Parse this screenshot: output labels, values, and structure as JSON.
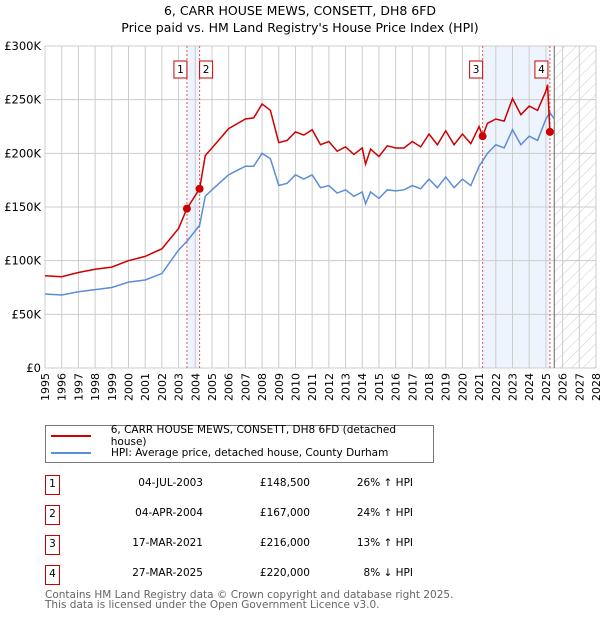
{
  "chart_data": {
    "type": "line",
    "title": "6, CARR HOUSE MEWS, CONSETT, DH8 6FD",
    "subtitle": "Price paid vs. HM Land Registry's House Price Index (HPI)",
    "xlim": [
      1995,
      2028
    ],
    "ylim": [
      0,
      300000
    ],
    "y_ticks": [
      {
        "v": 0,
        "label": "£0"
      },
      {
        "v": 50000,
        "label": "£50K"
      },
      {
        "v": 100000,
        "label": "£100K"
      },
      {
        "v": 150000,
        "label": "£150K"
      },
      {
        "v": 200000,
        "label": "£200K"
      },
      {
        "v": 250000,
        "label": "£250K"
      },
      {
        "v": 300000,
        "label": "£300K"
      }
    ],
    "x_ticks": [
      1995,
      1996,
      1997,
      1998,
      1999,
      2000,
      2001,
      2002,
      2003,
      2004,
      2005,
      2006,
      2007,
      2008,
      2009,
      2010,
      2011,
      2012,
      2013,
      2014,
      2015,
      2016,
      2017,
      2018,
      2019,
      2020,
      2021,
      2022,
      2023,
      2024,
      2025,
      2026,
      2027,
      2028
    ],
    "forecast_from": 2025.5,
    "shaded_ranges": [
      [
        2003.5,
        2004.26
      ],
      [
        2021.21,
        2025.24
      ]
    ],
    "series": [
      {
        "name": "6, CARR HOUSE MEWS, CONSETT, DH8 6FD (detached house)",
        "color": "#cc0000",
        "x": [
          1995,
          1996,
          1997,
          1998,
          1999,
          2000,
          2001,
          2002,
          2003,
          2003.5,
          2004.26,
          2004.6,
          2005,
          2006,
          2007,
          2007.5,
          2008,
          2008.5,
          2009,
          2009.5,
          2010,
          2010.5,
          2011,
          2011.5,
          2012,
          2012.5,
          2013,
          2013.5,
          2014,
          2014.2,
          2014.5,
          2015,
          2015.5,
          2016,
          2016.5,
          2017,
          2017.5,
          2018,
          2018.5,
          2019,
          2019.5,
          2020,
          2020.5,
          2021,
          2021.21,
          2021.5,
          2022,
          2022.5,
          2023,
          2023.5,
          2024,
          2024.5,
          2025,
          2025.1,
          2025.24
        ],
        "y": [
          86000,
          85000,
          89000,
          92000,
          94000,
          100000,
          104000,
          111000,
          130000,
          148500,
          167000,
          198000,
          205000,
          223000,
          232000,
          233000,
          246000,
          240000,
          210000,
          212000,
          220000,
          217000,
          222000,
          208000,
          211000,
          202000,
          206000,
          199000,
          205000,
          190000,
          204000,
          197000,
          207000,
          205000,
          205000,
          211000,
          206000,
          218000,
          208000,
          221000,
          208000,
          218000,
          209000,
          225000,
          216000,
          228000,
          232000,
          230000,
          251000,
          236000,
          244000,
          240000,
          258000,
          264000,
          220000
        ]
      },
      {
        "name": "HPI: Average price, detached house, County Durham",
        "color": "#5b8ed6",
        "x": [
          1995,
          1996,
          1997,
          1998,
          1999,
          2000,
          2001,
          2002,
          2003,
          2003.5,
          2004.26,
          2004.6,
          2005,
          2006,
          2007,
          2007.5,
          2008,
          2008.5,
          2009,
          2009.5,
          2010,
          2010.5,
          2011,
          2011.5,
          2012,
          2012.5,
          2013,
          2013.5,
          2014,
          2014.2,
          2014.5,
          2015,
          2015.5,
          2016,
          2016.5,
          2017,
          2017.5,
          2018,
          2018.5,
          2019,
          2019.5,
          2020,
          2020.5,
          2021,
          2021.5,
          2022,
          2022.5,
          2023,
          2023.5,
          2024,
          2024.5,
          2025,
          2025.24,
          2025.5
        ],
        "y": [
          69000,
          68000,
          71000,
          73000,
          75000,
          80000,
          82000,
          88000,
          110000,
          118000,
          133000,
          160000,
          166000,
          180000,
          188000,
          188000,
          200000,
          195000,
          170000,
          172000,
          180000,
          176000,
          180000,
          168000,
          170000,
          163000,
          166000,
          160000,
          164000,
          153000,
          164000,
          158000,
          166000,
          165000,
          166000,
          170000,
          167000,
          176000,
          168000,
          178000,
          168000,
          176000,
          170000,
          188000,
          200000,
          208000,
          205000,
          222000,
          208000,
          216000,
          212000,
          232000,
          238000,
          232000
        ]
      }
    ],
    "sales": [
      {
        "id": "1",
        "date": "04-JUL-2003",
        "x": 2003.5,
        "price": "£148,500",
        "value": 148500,
        "hpi": "26% ↑ HPI"
      },
      {
        "id": "2",
        "date": "04-APR-2004",
        "x": 2004.26,
        "price": "£167,000",
        "value": 167000,
        "hpi": "24% ↑ HPI"
      },
      {
        "id": "3",
        "date": "17-MAR-2021",
        "x": 2021.21,
        "price": "£216,000",
        "value": 216000,
        "hpi": "13% ↑ HPI"
      },
      {
        "id": "4",
        "date": "27-MAR-2025",
        "x": 2025.24,
        "price": "£220,000",
        "value": 220000,
        "hpi": "8% ↓ HPI"
      }
    ]
  },
  "footer": {
    "line1": "Contains HM Land Registry data © Crown copyright and database right 2025.",
    "line2": "This data is licensed under the Open Government Licence v3.0."
  }
}
